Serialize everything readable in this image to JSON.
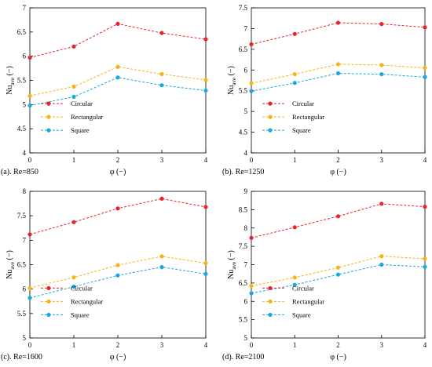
{
  "colors": {
    "circular": "#e8262a",
    "rectangular": "#f5b518",
    "square": "#1aa9de",
    "axis": "#000000",
    "background": "#ffffff"
  },
  "chart_data": [
    {
      "type": "line",
      "panel_label": "(a). Re=850",
      "xlabel": "φ (−)",
      "ylabel": "Nu",
      "ylabel_sub": "ave",
      "ylabel_unit": " (−)",
      "x": [
        0,
        1,
        2,
        3,
        4
      ],
      "x_ticks": [
        "0",
        "1",
        "2",
        "3",
        "4"
      ],
      "xlim": [
        0,
        4
      ],
      "ylim": [
        4,
        7
      ],
      "y_ticks": [
        "4",
        "4.5",
        "5",
        "5.5",
        "6",
        "6.5",
        "7"
      ],
      "grid": false,
      "legend_position": "lower-left",
      "series": [
        {
          "name": "Circular",
          "color_key": "circular",
          "values": [
            5.97,
            6.2,
            6.67,
            6.48,
            6.35
          ]
        },
        {
          "name": "Rectangular",
          "color_key": "rectangular",
          "values": [
            5.18,
            5.37,
            5.78,
            5.63,
            5.51
          ]
        },
        {
          "name": "Square",
          "color_key": "square",
          "values": [
            4.98,
            5.16,
            5.56,
            5.4,
            5.29
          ]
        }
      ]
    },
    {
      "type": "line",
      "panel_label": "(b). Re=1250",
      "xlabel": "φ (−)",
      "ylabel": "Nu",
      "ylabel_sub": "ave",
      "ylabel_unit": " (−)",
      "x": [
        0,
        1,
        2,
        3,
        4
      ],
      "x_ticks": [
        "0",
        "1",
        "2",
        "3",
        "4"
      ],
      "xlim": [
        0,
        4
      ],
      "ylim": [
        4,
        7.5
      ],
      "y_ticks": [
        "4",
        "4.5",
        "5",
        "5.5",
        "6",
        "6.5",
        "7",
        "7.5"
      ],
      "grid": false,
      "legend_position": "lower-left",
      "series": [
        {
          "name": "Circular",
          "color_key": "circular",
          "values": [
            6.62,
            6.87,
            7.14,
            7.11,
            7.03
          ]
        },
        {
          "name": "Rectangular",
          "color_key": "rectangular",
          "values": [
            5.68,
            5.9,
            6.14,
            6.12,
            6.05
          ]
        },
        {
          "name": "Square",
          "color_key": "square",
          "values": [
            5.49,
            5.69,
            5.92,
            5.9,
            5.83
          ]
        }
      ]
    },
    {
      "type": "line",
      "panel_label": "(c). Re=1600",
      "xlabel": "φ (−)",
      "ylabel": "Nu",
      "ylabel_sub": "ave",
      "ylabel_unit": " (−)",
      "x": [
        0,
        1,
        2,
        3,
        4
      ],
      "x_ticks": [
        "0",
        "1",
        "2",
        "3",
        "4"
      ],
      "xlim": [
        0,
        4
      ],
      "ylim": [
        5,
        8
      ],
      "y_ticks": [
        "5",
        "5.5",
        "6",
        "6.5",
        "7",
        "7.5",
        "8"
      ],
      "grid": false,
      "legend_position": "lower-left",
      "series": [
        {
          "name": "Circular",
          "color_key": "circular",
          "values": [
            7.12,
            7.37,
            7.65,
            7.85,
            7.68
          ]
        },
        {
          "name": "Rectangular",
          "color_key": "rectangular",
          "values": [
            6.02,
            6.24,
            6.49,
            6.67,
            6.53
          ]
        },
        {
          "name": "Square",
          "color_key": "square",
          "values": [
            5.82,
            6.05,
            6.28,
            6.45,
            6.31
          ]
        }
      ]
    },
    {
      "type": "line",
      "panel_label": "(d). Re=2100",
      "xlabel": "φ (−)",
      "ylabel": "Nu",
      "ylabel_sub": "ave",
      "ylabel_unit": " (−)",
      "x": [
        0,
        1,
        2,
        3,
        4
      ],
      "x_ticks": [
        "0",
        "1",
        "2",
        "3",
        "4"
      ],
      "xlim": [
        0,
        4
      ],
      "ylim": [
        5,
        9
      ],
      "y_ticks": [
        "5",
        "5.5",
        "6",
        "6.5",
        "7",
        "7.5",
        "8",
        "8.5",
        "9"
      ],
      "grid": false,
      "legend_position": "lower-left",
      "series": [
        {
          "name": "Circular",
          "color_key": "circular",
          "values": [
            7.73,
            8.02,
            8.32,
            8.66,
            8.58
          ]
        },
        {
          "name": "Rectangular",
          "color_key": "rectangular",
          "values": [
            6.42,
            6.65,
            6.92,
            7.23,
            7.16
          ]
        },
        {
          "name": "Square",
          "color_key": "square",
          "values": [
            6.22,
            6.45,
            6.73,
            7.0,
            6.94
          ]
        }
      ]
    }
  ]
}
